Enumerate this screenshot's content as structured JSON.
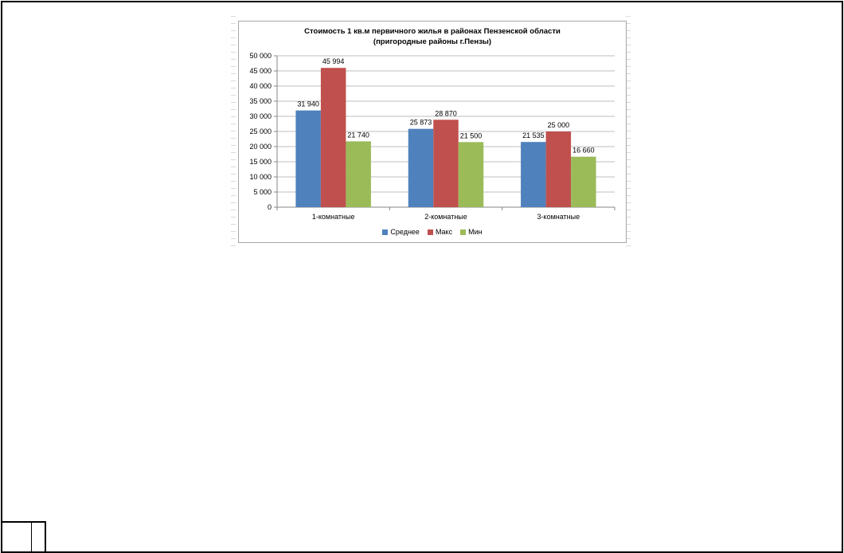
{
  "chart_data": {
    "type": "bar",
    "title_line1": "Стоимость 1 кв.м первичного жилья в районах Пензенской области",
    "title_line2": "(пригородные районы г.Пензы)",
    "categories": [
      "1-комнатные",
      "2-комнатные",
      "3-комнатные"
    ],
    "series": [
      {
        "name": "Среднее",
        "color": "#4f81bd",
        "values": [
          31940,
          25873,
          21535
        ],
        "labels": [
          "31 940",
          "25 873",
          "21 535"
        ]
      },
      {
        "name": "Макс",
        "color": "#c0504d",
        "values": [
          45994,
          28870,
          25000
        ],
        "labels": [
          "45 994",
          "28 870",
          "25 000"
        ]
      },
      {
        "name": "Мин",
        "color": "#9bbb59",
        "values": [
          21740,
          21500,
          16660
        ],
        "labels": [
          "21 740",
          "21 500",
          "16 660"
        ]
      }
    ],
    "ylim": [
      0,
      50000
    ],
    "yticks": [
      0,
      5000,
      10000,
      15000,
      20000,
      25000,
      30000,
      35000,
      40000,
      45000,
      50000
    ],
    "ytick_labels": [
      "0",
      "5 000",
      "10 000",
      "15 000",
      "20 000",
      "25 000",
      "30 000",
      "35 000",
      "40 000",
      "45 000",
      "50 000"
    ],
    "grid": true,
    "legend_position": "bottom"
  }
}
